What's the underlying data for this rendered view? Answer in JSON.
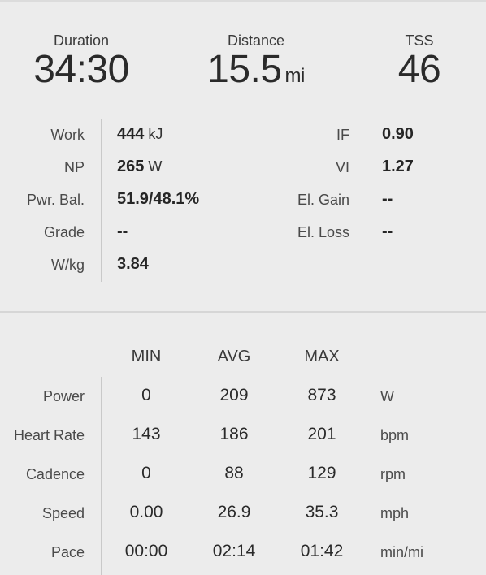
{
  "header": {
    "duration": {
      "label": "Duration",
      "value": "34:30"
    },
    "distance": {
      "label": "Distance",
      "value": "15.5",
      "unit": "mi"
    },
    "tss": {
      "label": "TSS",
      "value": "46"
    }
  },
  "stats": {
    "left": [
      {
        "label": "Work",
        "value": "444",
        "unit": "kJ"
      },
      {
        "label": "NP",
        "value": "265",
        "unit": "W"
      },
      {
        "label": "Pwr. Bal.",
        "value": "51.9/48.1%",
        "unit": ""
      },
      {
        "label": "Grade",
        "value": "--",
        "unit": ""
      },
      {
        "label": "W/kg",
        "value": "3.84",
        "unit": ""
      }
    ],
    "right": [
      {
        "label": "IF",
        "value": "0.90"
      },
      {
        "label": "VI",
        "value": "1.27"
      },
      {
        "label": "El. Gain",
        "value": "--"
      },
      {
        "label": "El. Loss",
        "value": "--"
      }
    ]
  },
  "table": {
    "columns": [
      "MIN",
      "AVG",
      "MAX"
    ],
    "rows": [
      {
        "label": "Power",
        "min": "0",
        "avg": "209",
        "max": "873",
        "unit": "W"
      },
      {
        "label": "Heart Rate",
        "min": "143",
        "avg": "186",
        "max": "201",
        "unit": "bpm"
      },
      {
        "label": "Cadence",
        "min": "0",
        "avg": "88",
        "max": "129",
        "unit": "rpm"
      },
      {
        "label": "Speed",
        "min": "0.00",
        "avg": "26.9",
        "max": "35.3",
        "unit": "mph"
      },
      {
        "label": "Pace",
        "min": "00:00",
        "avg": "02:14",
        "max": "01:42",
        "unit": "min/mi"
      }
    ]
  }
}
